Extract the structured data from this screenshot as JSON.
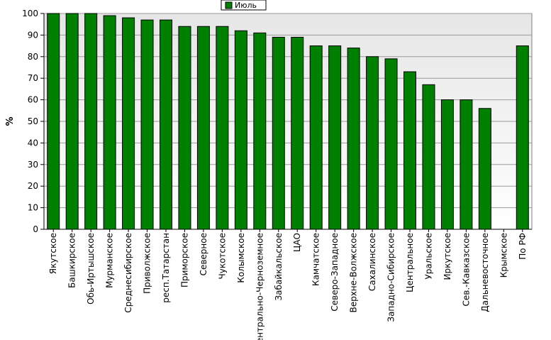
{
  "chart_data": {
    "type": "bar",
    "title": "",
    "xlabel": "",
    "ylabel": "%",
    "ylim": [
      0,
      100
    ],
    "yticks": [
      0,
      10,
      20,
      30,
      40,
      50,
      60,
      70,
      80,
      90,
      100
    ],
    "grid": true,
    "legend": {
      "placement": "top-center",
      "entries": [
        "Июль"
      ]
    },
    "categories": [
      "Якутское",
      "Башкирское",
      "Обь-Иртышское",
      "Мурманское",
      "Среднесибирское",
      "Приволжское",
      "респ.Татарстан",
      "Приморское",
      "Северное",
      "Чукотское",
      "Колымское",
      "Центрально-Черноземное",
      "Забайкальское",
      "ЦАО",
      "Камчатское",
      "Северо-Западное",
      "Верхне-Волжское",
      "Сахалинское",
      "Западно-Сибирское",
      "Центральное",
      "Уральское",
      "Иркутское",
      "Сев.-Кавказское",
      "Дальневосточное",
      "Крымское",
      "По РФ"
    ],
    "series": [
      {
        "name": "Июль",
        "color": "#008000",
        "values": [
          100,
          100,
          100,
          99,
          98,
          97,
          97,
          94,
          94,
          94,
          92,
          91,
          89,
          89,
          85,
          85,
          84,
          80,
          79,
          73,
          67,
          60,
          60,
          56,
          null,
          85
        ]
      }
    ]
  }
}
